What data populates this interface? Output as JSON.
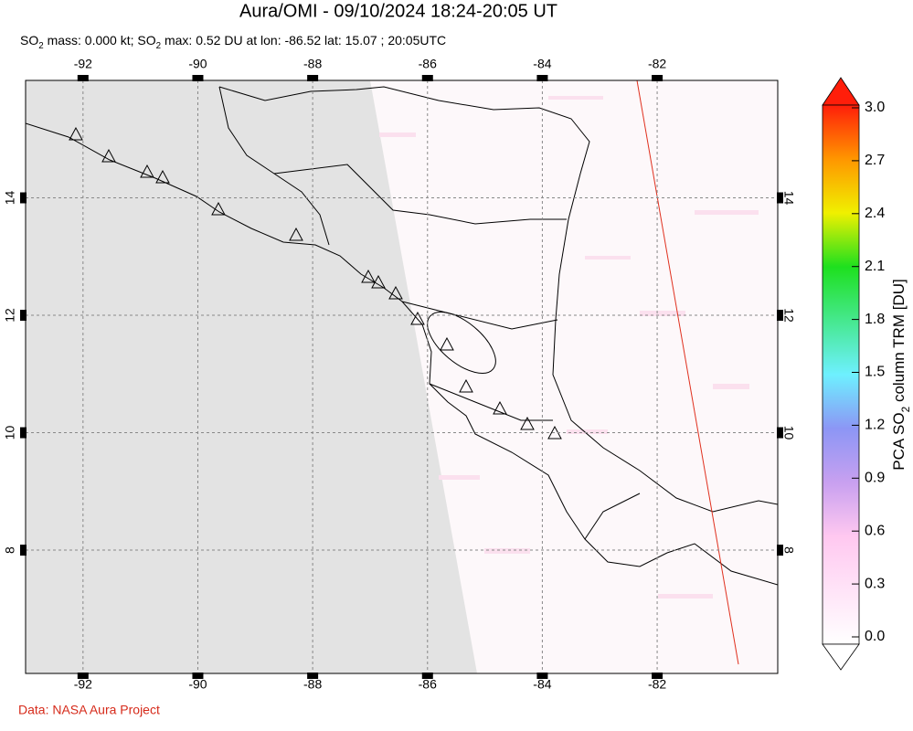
{
  "title": "Aura/OMI - 09/10/2024 18:24-20:05 UT",
  "subtitle_parts": [
    "SO",
    "2",
    " mass: 0.000 kt; SO",
    "2",
    " max: 0.52 DU at lon: -86.52 lat: 15.07 ; 20:05UTC"
  ],
  "credit": "Data: NASA Aura Project",
  "map": {
    "xlim": [
      -93,
      -79.9
    ],
    "ylim": [
      5.9,
      16
    ],
    "xticks": [
      -92,
      -90,
      -88,
      -86,
      -84,
      -82
    ],
    "yticks": [
      8,
      10,
      12,
      14
    ]
  },
  "colorbar": {
    "lim": [
      0,
      3
    ],
    "ticks": [
      {
        "value": 0,
        "label": "0.0"
      },
      0.3,
      0.6,
      0.9,
      1.2,
      1.5,
      1.8,
      2.1,
      2.4,
      2.7,
      {
        "value": 3,
        "label": "3.0"
      }
    ],
    "label_parts": [
      "PCA SO",
      "2",
      " column TRM [DU]"
    ]
  }
}
